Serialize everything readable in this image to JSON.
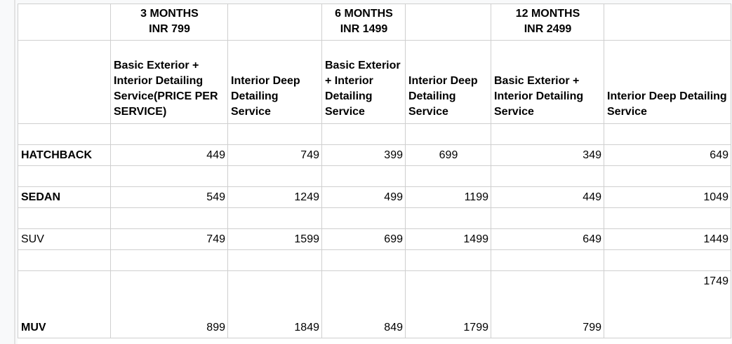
{
  "plans": [
    {
      "duration": "3 MONTHS",
      "price": "INR 799"
    },
    {
      "duration": "6 MONTHS",
      "price": "INR 1499"
    },
    {
      "duration": "12 MONTHS",
      "price": "INR 2499"
    }
  ],
  "services": [
    "Basic Exterior + Interior Detailing Service(PRICE PER SERVICE)",
    "Interior Deep Detailing Service",
    "Basic Exterior + Interior Detailing Service",
    "Interior Deep Detailing Service",
    "Basic Exterior + Interior Detailing Service",
    "Interior Deep Detailing Service"
  ],
  "rows": [
    {
      "vehicle": "HATCHBACK",
      "values": [
        "449",
        "749",
        "399",
        "699",
        "349",
        "649"
      ]
    },
    {
      "vehicle": "SEDAN",
      "values": [
        "549",
        "1249",
        "499",
        "1199",
        "449",
        "1049"
      ]
    },
    {
      "vehicle": "SUV",
      "values": [
        "749",
        "1599",
        "699",
        "1499",
        "649",
        "1449"
      ]
    },
    {
      "vehicle": "MUV",
      "values": [
        "899",
        "1849",
        "849",
        "1799",
        "799",
        "1749"
      ]
    }
  ]
}
